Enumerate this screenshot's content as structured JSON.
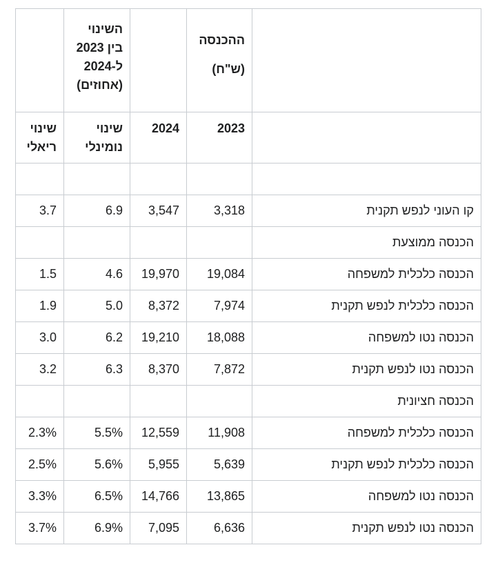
{
  "header_row1": {
    "income": "ההכנסה (ש\"ח)",
    "change": "השינוי בין 2023 ל-2024 (אחוזים)"
  },
  "header_row2": {
    "y2023": "2023",
    "y2024": "2024",
    "nominal": "שינוי נומינלי",
    "real": "שינוי ריאלי"
  },
  "rows": [
    {
      "label": "קו העוני לנפש תקנית",
      "v2023": "3,318",
      "v2024": "3,547",
      "nominal": "6.9",
      "real": "3.7"
    },
    {
      "label": "הכנסה ממוצעת",
      "v2023": "",
      "v2024": "",
      "nominal": "",
      "real": ""
    },
    {
      "label": "הכנסה כלכלית למשפחה",
      "v2023": "19,084",
      "v2024": "19,970",
      "nominal": "4.6",
      "real": "1.5"
    },
    {
      "label": "הכנסה כלכלית לנפש תקנית",
      "v2023": "7,974",
      "v2024": "8,372",
      "nominal": "5.0",
      "real": "1.9"
    },
    {
      "label": "הכנסה נטו למשפחה",
      "v2023": "18,088",
      "v2024": "19,210",
      "nominal": "6.2",
      "real": "3.0"
    },
    {
      "label": "הכנסה נטו לנפש תקנית",
      "v2023": "7,872",
      "v2024": "8,370",
      "nominal": "6.3",
      "real": "3.2"
    },
    {
      "label": "הכנסה חציונית",
      "v2023": "",
      "v2024": "",
      "nominal": "",
      "real": ""
    },
    {
      "label": "הכנסה כלכלית למשפחה",
      "v2023": "11,908",
      "v2024": "12,559",
      "nominal": "5.5%",
      "real": "2.3%"
    },
    {
      "label": "הכנסה כלכלית לנפש תקנית",
      "v2023": "5,639",
      "v2024": "5,955",
      "nominal": "5.6%",
      "real": "2.5%"
    },
    {
      "label": "הכנסה נטו למשפחה",
      "v2023": "13,865",
      "v2024": "14,766",
      "nominal": "6.5%",
      "real": "3.3%"
    },
    {
      "label": "הכנסה נטו לנפש תקנית",
      "v2023": "6,636",
      "v2024": "7,095",
      "nominal": "6.9%",
      "real": "3.7%"
    }
  ]
}
